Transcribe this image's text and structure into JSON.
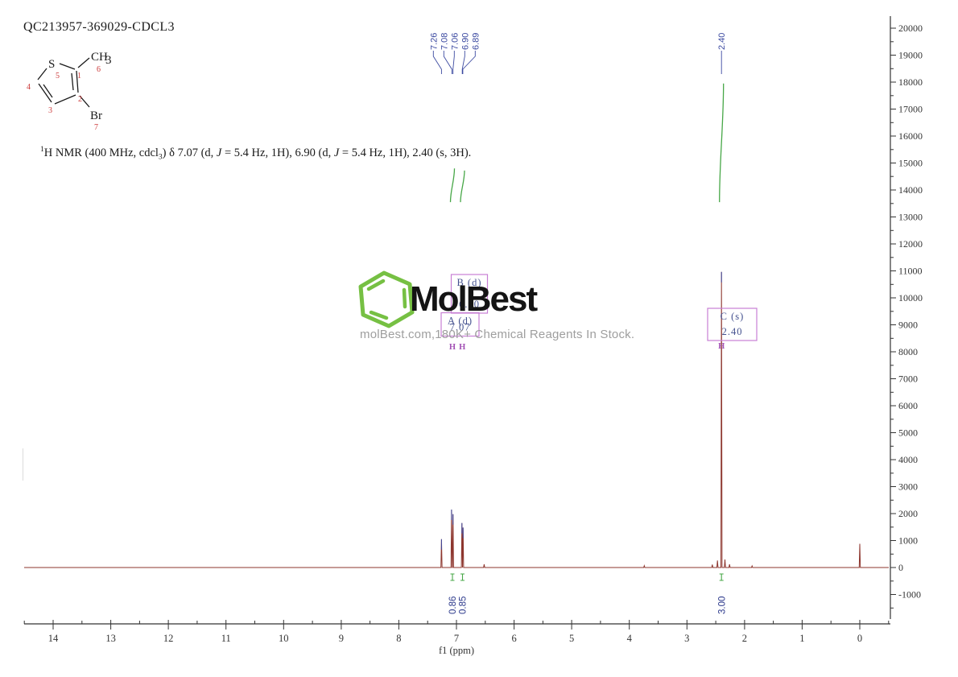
{
  "header": {
    "sample_id": "QC213957-369029-CDCL3"
  },
  "molecule": {
    "name_hint": "3-bromo-2-methylthiophene structure",
    "s": "S",
    "ch": "CH",
    "ch_sub": "3",
    "br": "Br",
    "n1": "1",
    "n2": "2",
    "n3": "3",
    "n4": "4",
    "n5": "5",
    "n6": "6",
    "n7": "7"
  },
  "citation": {
    "sup": "1",
    "p1": "H NMR (400 MHz, cdcl",
    "sub": "3",
    "p2": ") δ 7.07 (d, ",
    "j": "J",
    "p3": " = 5.4 Hz, 1H), 6.90 (d, ",
    "j2": "J",
    "p4": " = 5.4 Hz, 1H), 2.40 (s, 3H)."
  },
  "watermark": {
    "brand": "MolBest",
    "tagline": "molBest.com,180K+ Chemical Reagents In Stock.",
    "hex_color": "#76c043"
  },
  "colors": {
    "spectrum_line": "#8d362e",
    "peak_label_blue": "#3b49a0",
    "integral_green": "#47a747",
    "annotation_purple": "#c77fd4",
    "axis": "#333333"
  },
  "chart_data": {
    "type": "line",
    "subtype": "1H NMR spectrum",
    "xlabel": "f1 (ppm)",
    "x_ticks": [
      14,
      13,
      12,
      11,
      10,
      9,
      8,
      7,
      6,
      5,
      4,
      3,
      2,
      1,
      0
    ],
    "x_range": [
      14.55,
      -0.53
    ],
    "y_ticks": [
      20000,
      19000,
      18000,
      17000,
      16000,
      15000,
      14000,
      13000,
      12000,
      11000,
      10000,
      9000,
      8000,
      7000,
      6000,
      5000,
      4000,
      3000,
      2000,
      1000,
      0,
      -1000
    ],
    "y_range": [
      -1900,
      20500
    ],
    "grid": false,
    "peaks": [
      {
        "ppm": 7.26,
        "intensity": 1050
      },
      {
        "ppm": 7.085,
        "intensity": 2150
      },
      {
        "ppm": 7.06,
        "intensity": 1980
      },
      {
        "ppm": 6.905,
        "intensity": 1650
      },
      {
        "ppm": 6.885,
        "intensity": 1480
      },
      {
        "ppm": 6.52,
        "intensity": 120
      },
      {
        "ppm": 3.74,
        "intensity": 70
      },
      {
        "ppm": 2.56,
        "intensity": 110
      },
      {
        "ppm": 2.47,
        "intensity": 260
      },
      {
        "ppm": 2.4,
        "intensity": 10960
      },
      {
        "ppm": 2.34,
        "intensity": 300
      },
      {
        "ppm": 2.26,
        "intensity": 120
      },
      {
        "ppm": 1.87,
        "intensity": 60
      },
      {
        "ppm": 0.0,
        "intensity": 880
      }
    ],
    "peak_label_groups": [
      {
        "labels": [
          "7.26",
          "7.08",
          "7.06",
          "6.90",
          "6.89"
        ]
      },
      {
        "labels": [
          "2.40"
        ]
      }
    ],
    "integrals": [
      {
        "label": "0.86",
        "ppm": 7.07,
        "curve_span": [
          13550,
          14800
        ]
      },
      {
        "label": "0.85",
        "ppm": 6.895,
        "curve_span": [
          13550,
          14720
        ]
      },
      {
        "label": "3.00",
        "ppm": 2.4,
        "curve_span": [
          13550,
          17950
        ]
      }
    ],
    "annotations": [
      {
        "id": "B",
        "label": "B (d)",
        "shift": "6.90",
        "proton": "H",
        "ppm": 6.9
      },
      {
        "id": "A",
        "label": "A (d)",
        "shift": "7.07",
        "proton": "H",
        "ppm": 7.07
      },
      {
        "id": "C",
        "label": "C (s)",
        "shift": "2.40",
        "proton": "H",
        "ppm": 2.4
      }
    ]
  }
}
